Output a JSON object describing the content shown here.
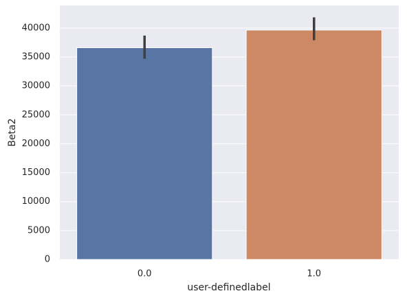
{
  "chart_data": {
    "type": "bar",
    "categories": [
      "0.0",
      "1.0"
    ],
    "values": [
      36600,
      39650
    ],
    "ci_low": [
      34700,
      37900
    ],
    "ci_high": [
      38700,
      41850
    ],
    "colors": [
      "#5975a4",
      "#cc8963"
    ],
    "xlabel": "user-definedlabel",
    "ylabel": "Beta2",
    "ylim": [
      0,
      43900
    ],
    "yticks": [
      0,
      5000,
      10000,
      15000,
      20000,
      25000,
      30000,
      35000,
      40000
    ],
    "grid": true
  }
}
